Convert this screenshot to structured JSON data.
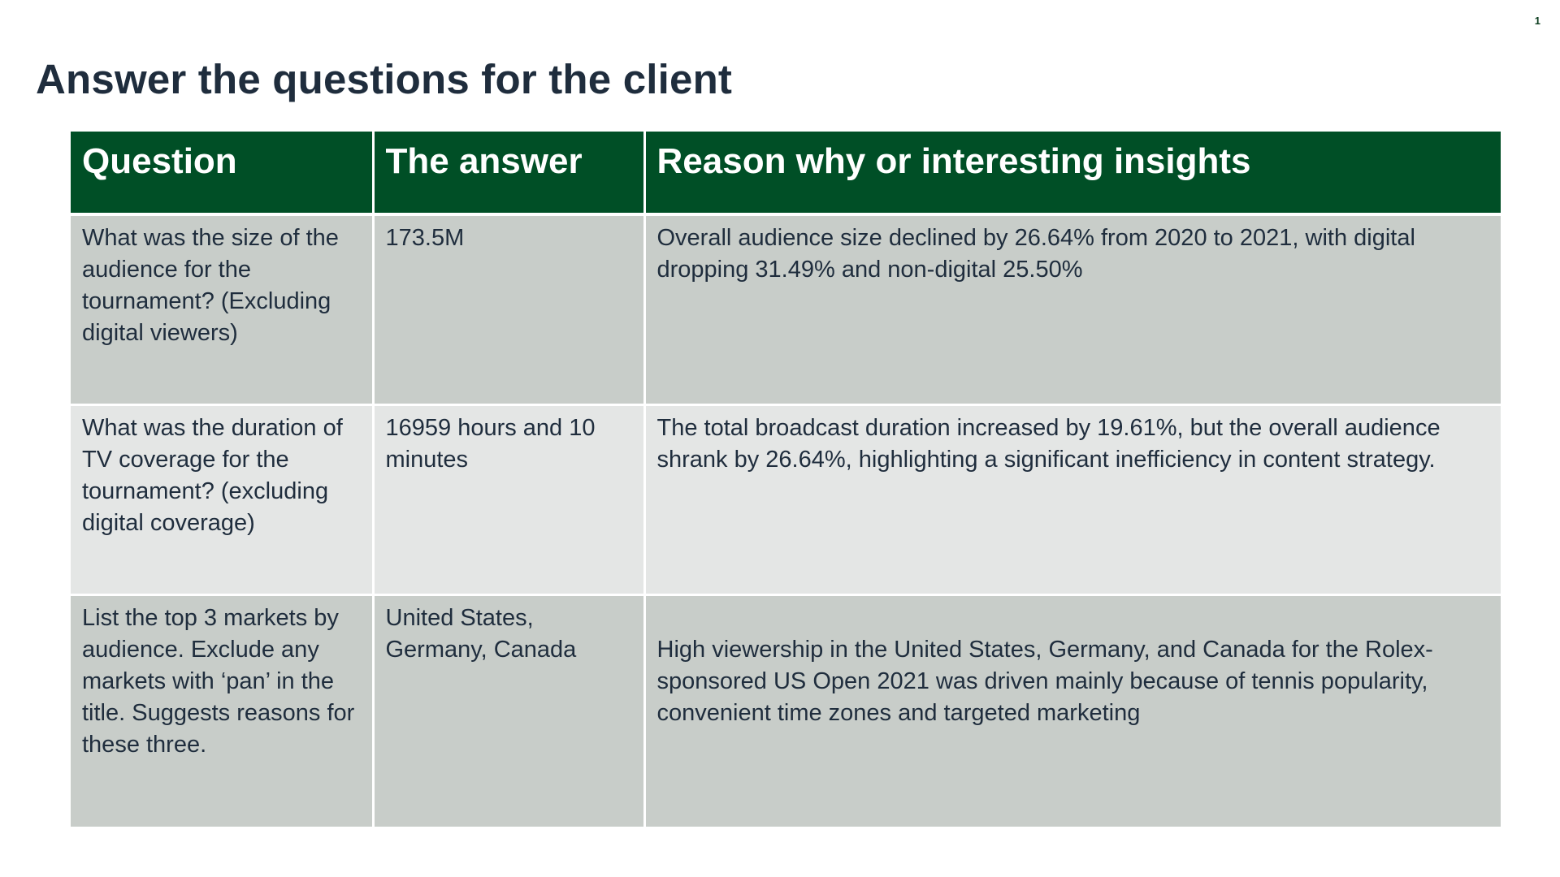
{
  "page_number": "1",
  "title": "Answer the questions for the client",
  "table": {
    "headers": [
      "Question",
      "The answer",
      "Reason why or interesting insights"
    ],
    "rows": [
      {
        "question": "What was the size of the audience for the tournament? (Excluding digital viewers)",
        "answer": "173.5M",
        "insight": "Overall audience size declined by 26.64% from 2020 to 2021, with digital dropping 31.49% and non-digital 25.50%"
      },
      {
        "question": "What was the duration of TV coverage for the tournament? (excluding digital coverage)",
        "answer": "16959 hours and 10 minutes",
        "insight": "The total broadcast duration increased by 19.61%, but the overall audience shrank by 26.64%, highlighting a significant inefficiency in content strategy."
      },
      {
        "question": "List the top 3 markets by audience. Exclude any markets with ‘pan’ in the title. Suggests reasons for these three.",
        "answer": "United States, Germany, Canada",
        "insight": "High viewership in the United States, Germany, and Canada for the Rolex-sponsored US Open 2021 was driven mainly because of tennis popularity, convenient time zones and targeted marketing"
      }
    ]
  },
  "colors": {
    "header_bg": "#004f26",
    "row_dark": "#c8cdc9",
    "row_light": "#e4e6e5",
    "title_text": "#1f2d3d"
  }
}
